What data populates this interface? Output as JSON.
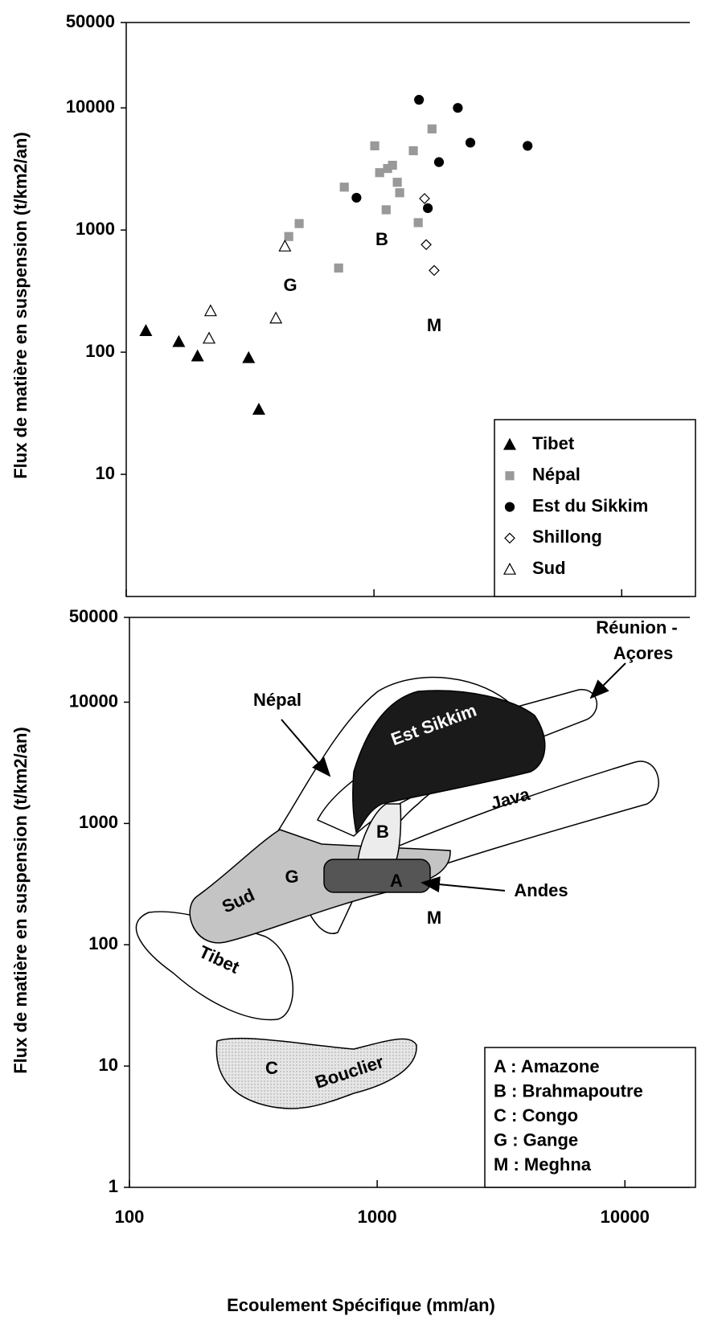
{
  "chart_data": [
    {
      "type": "scatter",
      "ylabel": "Flux de matière en suspension  (t/km2/an)",
      "xlim": [
        100,
        20000
      ],
      "ylim": [
        1,
        50000
      ],
      "xscale": "log",
      "yscale": "log",
      "yticks": [
        10,
        100,
        1000,
        10000,
        50000
      ],
      "legend": "lower right",
      "annotations": [
        "B",
        "G",
        "M"
      ],
      "series": [
        {
          "name": "Tibet",
          "marker": "triangle",
          "color": "#000000",
          "filled": true,
          "x": [
            120,
            163,
            194,
            312,
            343
          ],
          "values": [
            150,
            122,
            93,
            90,
            34
          ]
        },
        {
          "name": "Népal",
          "marker": "square",
          "color": "#999999",
          "filled": true,
          "x": [
            720,
            499,
            453,
            759,
            1007,
            1054,
            1135,
            1188,
            1120,
            1242,
            1270,
            1442,
            1509,
            1715
          ],
          "values": [
            489,
            1130,
            885,
            2245,
            4890,
            2950,
            3190,
            3390,
            1465,
            2460,
            2020,
            4460,
            1150,
            6730
          ]
        },
        {
          "name": "Est du Sikkim",
          "marker": "circle",
          "color": "#000000",
          "filled": true,
          "x": [
            1520,
            2180,
            2450,
            1830,
            850,
            1650,
            4170
          ],
          "values": [
            11650,
            10000,
            5190,
            3600,
            1840,
            1510,
            4890
          ]
        },
        {
          "name": "Shillong",
          "marker": "diamond",
          "color": "#000000",
          "filled": false,
          "x": [
            1600,
            1625,
            1750
          ],
          "values": [
            1810,
            760,
            467
          ]
        },
        {
          "name": "Sud",
          "marker": "triangle",
          "color": "#000000",
          "filled": false,
          "x": [
            219,
            216,
            402,
            437
          ],
          "values": [
            218,
            130,
            190,
            738
          ]
        }
      ]
    },
    {
      "type": "region",
      "ylabel": "Flux de matière en suspension  (t/km2/an)",
      "xlabel": "Ecoulement Spécifique (mm/an)",
      "xlim": [
        100,
        20000
      ],
      "ylim": [
        1,
        50000
      ],
      "xscale": "log",
      "yscale": "log",
      "xticks": [
        100,
        1000,
        10000
      ],
      "yticks": [
        1,
        10,
        100,
        1000,
        10000,
        50000
      ],
      "annotations": [
        "Népal",
        "Réunion -",
        "Açores",
        "Est Sikkim",
        "Java",
        "B",
        "Sud",
        "G",
        "A",
        "Andes",
        "M",
        "Tibet",
        "C",
        "Bouclier"
      ],
      "legend_entries": [
        "A : Amazone",
        "B : Brahmapoutre",
        "C : Congo",
        "G : Gange",
        "M : Meghna"
      ]
    }
  ]
}
